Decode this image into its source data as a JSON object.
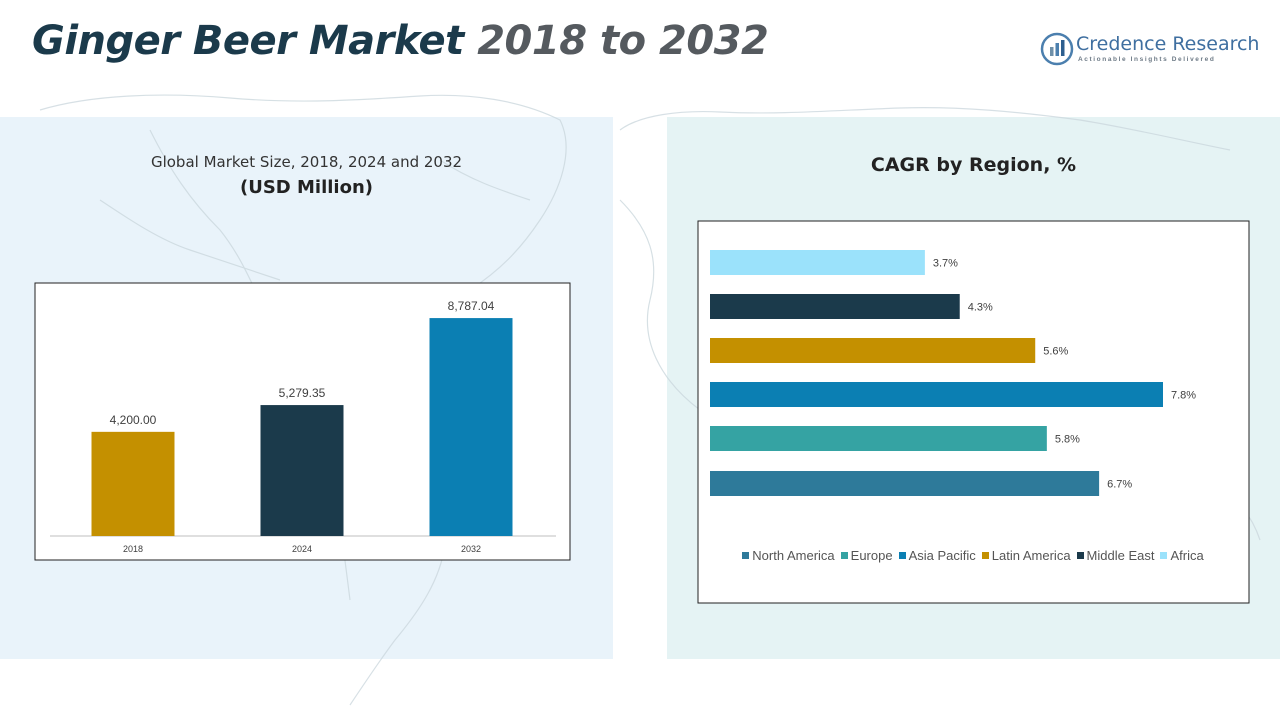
{
  "page": {
    "title_part1": "Ginger Beer Market",
    "title_part2": "2018 to 2032"
  },
  "brand": {
    "name": "Credence Research",
    "tagline": "Actionable Insights Delivered",
    "logo_icon": "credence-research-logo"
  },
  "colors": {
    "title": "#1b3a4b",
    "north_america": "#2e7a9a",
    "europe": "#35a3a3",
    "asia_pacific": "#0b7fb3",
    "latin_america": "#c49000",
    "middle_east": "#1b3a4b",
    "africa": "#9be2fb"
  },
  "left_panel": {
    "subtitle": "Global Market Size, 2018, 2024 and 2032",
    "unit": "(USD Million)"
  },
  "right_panel": {
    "title": "CAGR by Region, %"
  },
  "chart_data": [
    {
      "type": "bar",
      "title": "Global Market Size, 2018, 2024 and 2032",
      "ylabel": "(USD Million)",
      "categories": [
        "2018",
        "2024",
        "2032"
      ],
      "values": [
        4200.0,
        5279.35,
        8787.04
      ],
      "value_labels": [
        "4,200.00",
        "5,279.35",
        "8,787.04"
      ],
      "bar_colors": [
        "#c49000",
        "#1b3a4b",
        "#0b7fb3"
      ],
      "ylim": [
        0,
        10000
      ],
      "grid": false
    },
    {
      "type": "bar",
      "orientation": "horizontal",
      "title": "CAGR by Region, %",
      "categories": [
        "North America",
        "Europe",
        "Asia Pacific",
        "Latin America",
        "Middle East",
        "Africa"
      ],
      "values": [
        6.7,
        5.8,
        7.8,
        5.6,
        4.3,
        3.7
      ],
      "value_labels": [
        "6.7%",
        "5.8%",
        "7.8%",
        "5.6%",
        "4.3%",
        "3.7%"
      ],
      "bar_colors": [
        "#2e7a9a",
        "#35a3a3",
        "#0b7fb3",
        "#c49000",
        "#1b3a4b",
        "#9be2fb"
      ],
      "xlim": [
        0,
        8
      ],
      "grid": false,
      "legend_position": "bottom"
    }
  ]
}
